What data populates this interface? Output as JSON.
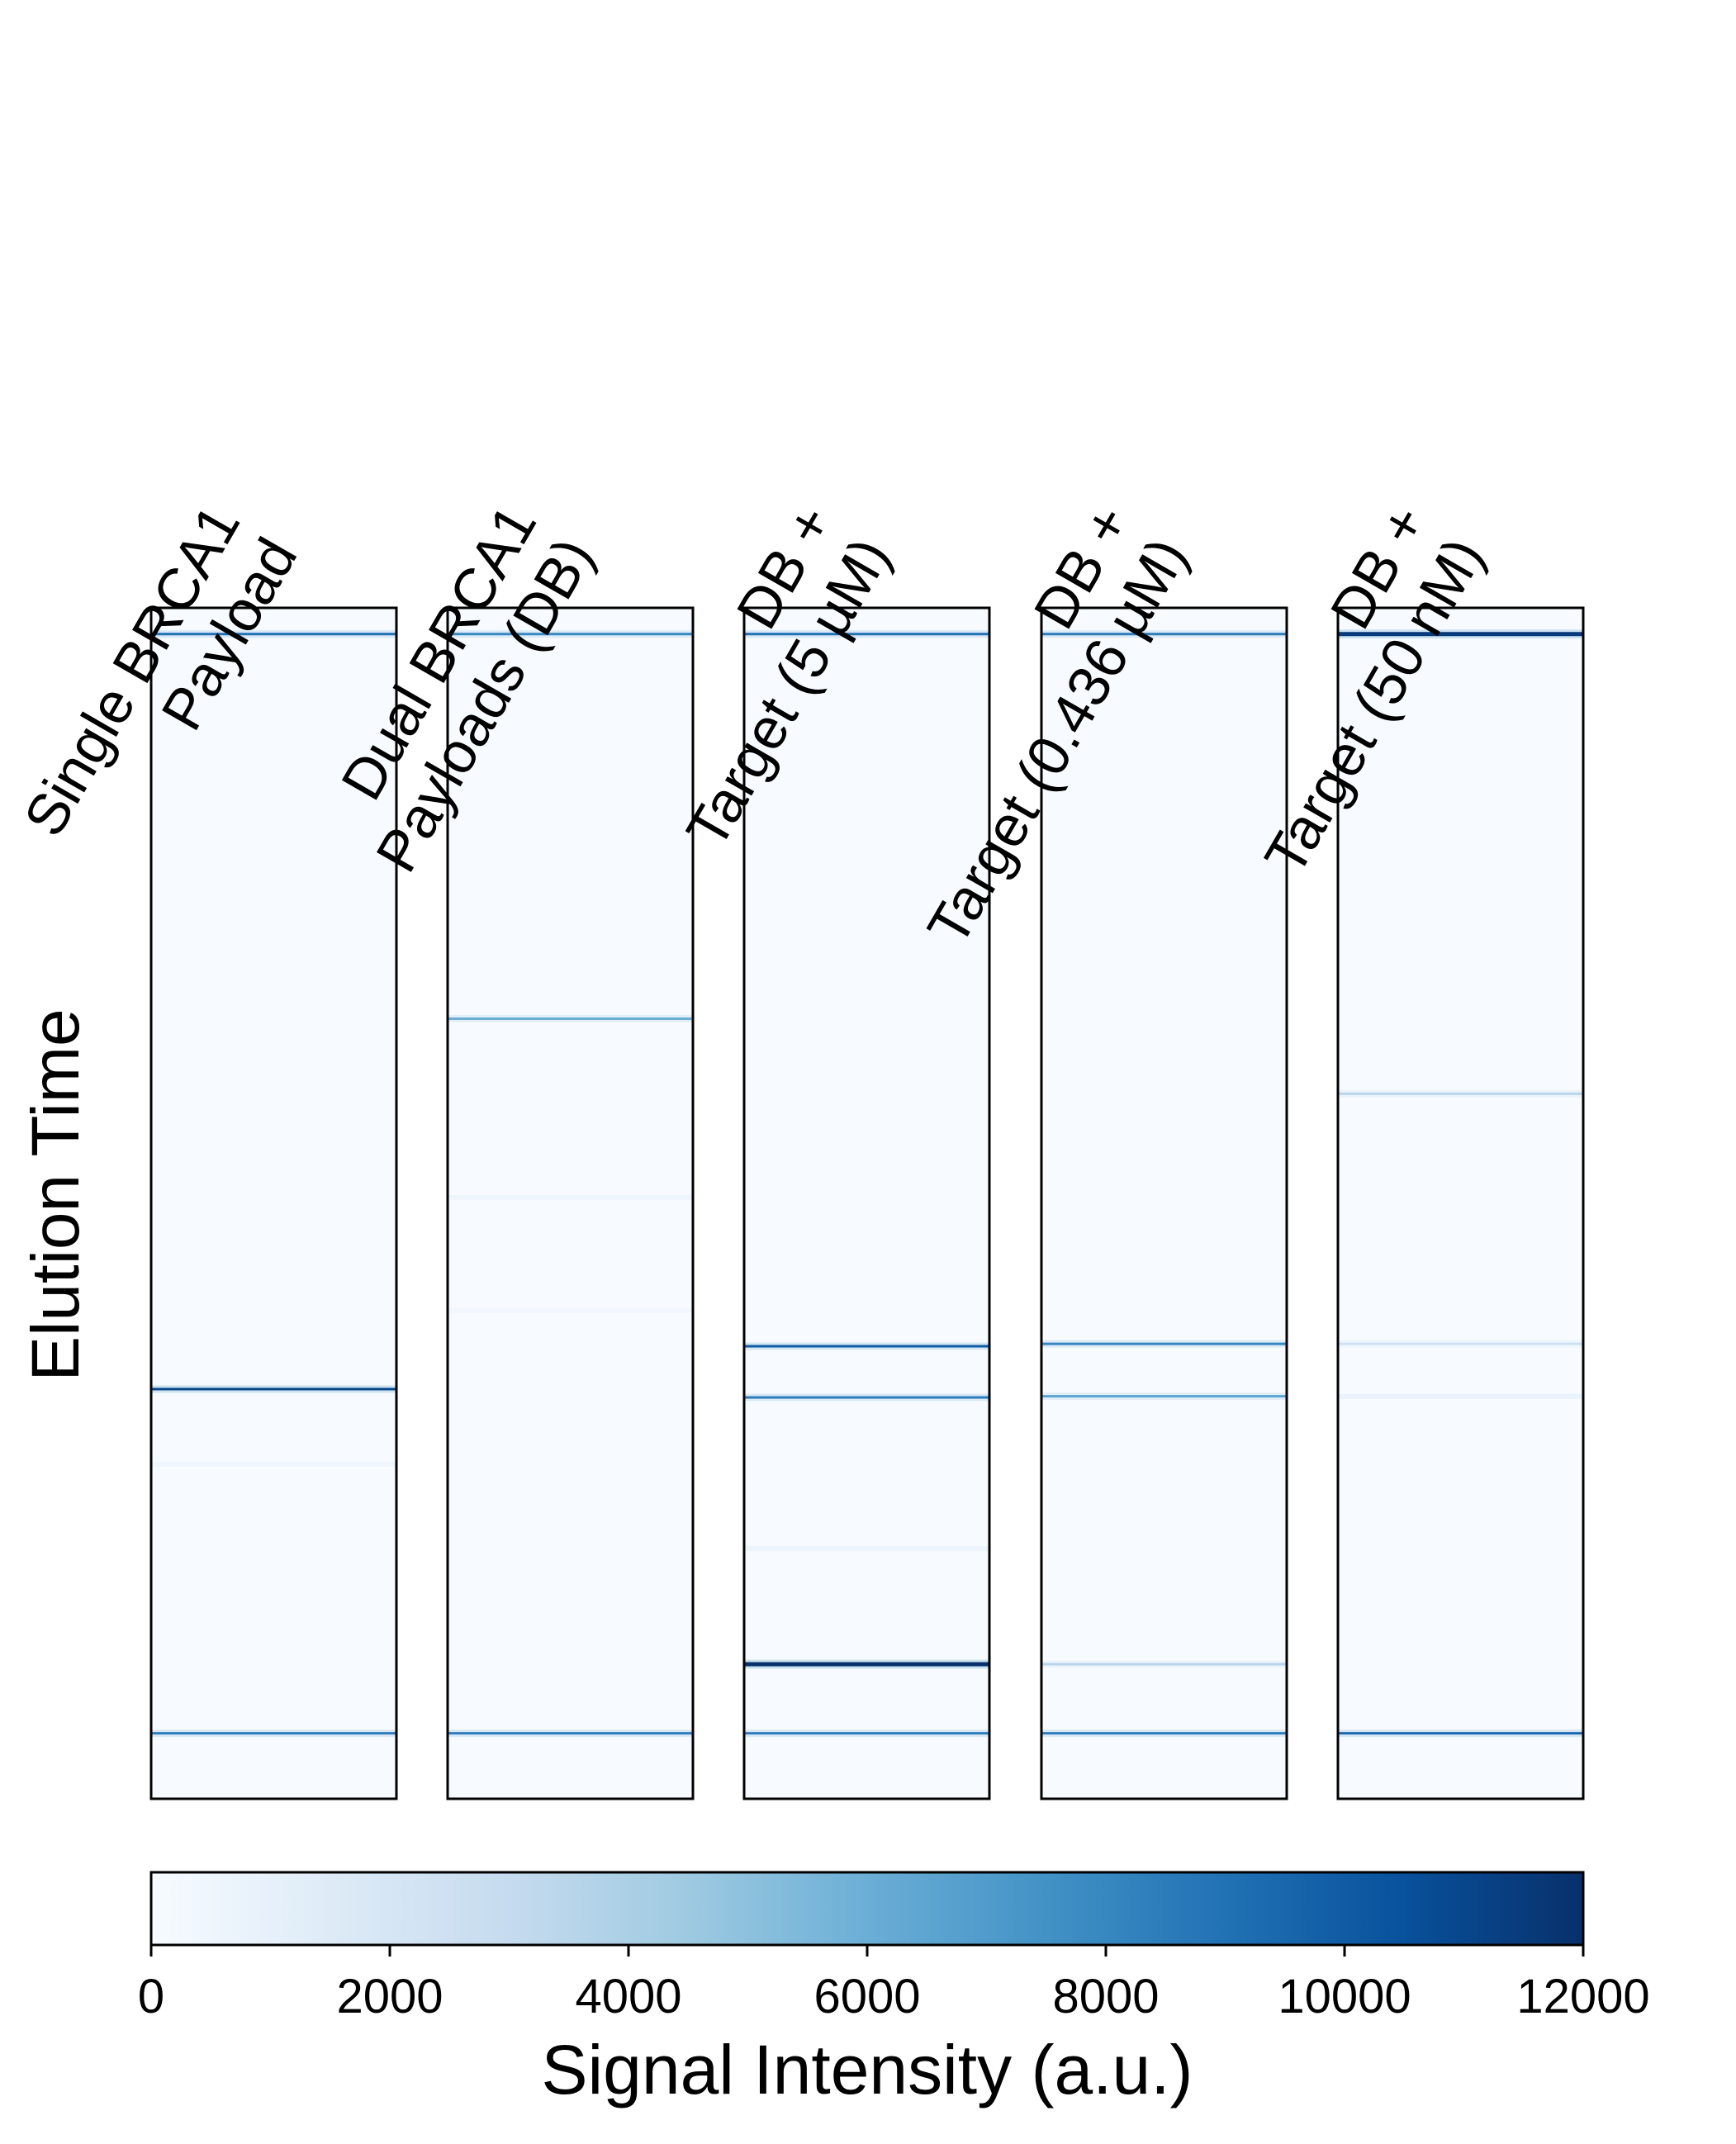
{
  "chart_data": {
    "type": "heatmap",
    "title": "",
    "ylabel": "Elution Time",
    "colorbar": {
      "label": "Signal Intensity (a.u.)",
      "range": [
        0,
        12000
      ],
      "ticks": [
        0,
        2000,
        4000,
        6000,
        8000,
        10000,
        12000
      ],
      "tick_labels": [
        "0",
        "2000",
        "4000",
        "6000",
        "8000",
        "10000",
        "12000"
      ],
      "colormap": "Blues",
      "colors": [
        "#f7fbff",
        "#deebf7",
        "#c6dbef",
        "#9ecae1",
        "#6baed6",
        "#4292c6",
        "#2171b5",
        "#08519c",
        "#08306b"
      ]
    },
    "y_axis": {
      "ticks_shown": false,
      "range": [
        0,
        1
      ],
      "inverted": true
    },
    "lanes": [
      {
        "label_lines": [
          "Single BRCA1",
          "Payload"
        ],
        "bands": [
          {
            "y": 0.022,
            "intensity": 9000
          },
          {
            "y": 0.656,
            "intensity": 11000
          },
          {
            "y": 0.719,
            "intensity": 600
          },
          {
            "y": 0.945,
            "intensity": 8500
          }
        ]
      },
      {
        "label_lines": [
          "Dual BRCA1",
          "Payloads (DB)"
        ],
        "bands": [
          {
            "y": 0.022,
            "intensity": 8000
          },
          {
            "y": 0.345,
            "intensity": 6000
          },
          {
            "y": 0.495,
            "intensity": 700
          },
          {
            "y": 0.59,
            "intensity": 500
          },
          {
            "y": 0.945,
            "intensity": 8500
          }
        ]
      },
      {
        "label_lines": [
          "DB +",
          "Target (5 µM)"
        ],
        "bands": [
          {
            "y": 0.022,
            "intensity": 9000
          },
          {
            "y": 0.62,
            "intensity": 10000
          },
          {
            "y": 0.663,
            "intensity": 8500
          },
          {
            "y": 0.79,
            "intensity": 800
          },
          {
            "y": 0.887,
            "intensity": 12000
          },
          {
            "y": 0.945,
            "intensity": 8500
          }
        ]
      },
      {
        "label_lines": [
          "DB +",
          "Target (0.436 µM)"
        ],
        "bands": [
          {
            "y": 0.022,
            "intensity": 8500
          },
          {
            "y": 0.618,
            "intensity": 8000
          },
          {
            "y": 0.662,
            "intensity": 6500
          },
          {
            "y": 0.887,
            "intensity": 3500
          },
          {
            "y": 0.945,
            "intensity": 8500
          }
        ]
      },
      {
        "label_lines": [
          "DB +",
          "Target (50 nM)"
        ],
        "bands": [
          {
            "y": 0.022,
            "intensity": 11500
          },
          {
            "y": 0.408,
            "intensity": 3500
          },
          {
            "y": 0.618,
            "intensity": 2500
          },
          {
            "y": 0.662,
            "intensity": 1000
          },
          {
            "y": 0.945,
            "intensity": 9500
          }
        ]
      }
    ]
  }
}
